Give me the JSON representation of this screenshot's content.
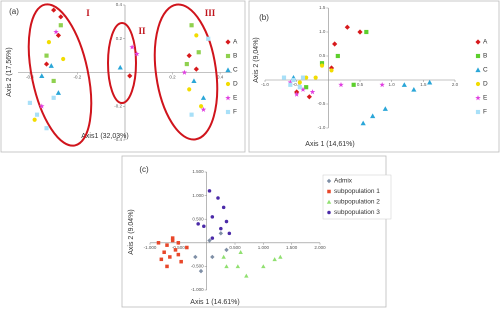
{
  "chart_data": [
    {
      "type": "scatter",
      "title": "(a)",
      "x_label": "Axis1 (32,03%)",
      "y_label": "Axis 2 (17,56%)",
      "annotations": [
        "I",
        "II",
        "III"
      ],
      "xlim": [
        -0.45,
        0.45
      ],
      "ylim": [
        -0.4,
        0.4
      ],
      "xticks": [
        -0.4,
        -0.2,
        0.2,
        0.4
      ],
      "yticks": [
        -0.4,
        -0.2,
        0.2,
        0.4
      ],
      "series": [
        {
          "name": "A",
          "color": "#d7191c",
          "marker": "diamond",
          "x": [
            -0.3,
            -0.27,
            -0.28,
            -0.33,
            0.27,
            0.3,
            0.02
          ],
          "y": [
            0.37,
            0.33,
            0.22,
            0.05,
            0.1,
            0.02,
            -0.02
          ]
        },
        {
          "name": "B",
          "color": "#8fd14f",
          "marker": "square",
          "x": [
            -0.27,
            -0.33,
            -0.3,
            0.28,
            0.31,
            0.26
          ],
          "y": [
            0.28,
            0.1,
            -0.05,
            0.28,
            0.12,
            0.05
          ]
        },
        {
          "name": "C",
          "color": "#2aa6d8",
          "marker": "triangle",
          "x": [
            -0.35,
            -0.28,
            -0.31,
            0.29,
            0.33,
            -0.02
          ],
          "y": [
            -0.02,
            -0.12,
            0.04,
            -0.05,
            -0.15,
            0.03
          ]
        },
        {
          "name": "D",
          "color": "#f2dc00",
          "marker": "circle",
          "x": [
            -0.32,
            -0.26,
            -0.38,
            0.3,
            0.27,
            0.32
          ],
          "y": [
            0.18,
            0.08,
            -0.28,
            0.22,
            -0.1,
            -0.2
          ]
        },
        {
          "name": "E",
          "color": "#e040e0",
          "marker": "star",
          "x": [
            -0.29,
            0.03,
            0.05,
            0.25,
            0.33,
            -0.35
          ],
          "y": [
            0.24,
            0.15,
            0.11,
            0.0,
            -0.22,
            -0.2
          ]
        },
        {
          "name": "F",
          "color": "#a8e0f8",
          "marker": "square",
          "x": [
            -0.37,
            -0.4,
            -0.33,
            0.28,
            -0.3,
            0.35
          ],
          "y": [
            -0.25,
            -0.18,
            -0.33,
            -0.25,
            -0.15,
            0.2
          ]
        }
      ]
    },
    {
      "type": "scatter",
      "title": "(b)",
      "x_label": "Axis 1 (14,61%)",
      "y_label": "Axis 2 (9,04%)",
      "xlim": [
        -1,
        2
      ],
      "ylim": [
        -1,
        1.5
      ],
      "xticks": [
        {
          "value": -1,
          "label": "-1.0"
        },
        -0.5,
        0.5,
        {
          "value": 1,
          "label": "1.0"
        },
        1.5,
        {
          "value": 2,
          "label": "2.0"
        }
      ],
      "yticks": [
        {
          "value": -1,
          "label": "-1.0"
        },
        -0.5,
        0.5,
        {
          "value": 1,
          "label": "1.0"
        },
        1.5
      ],
      "series": [
        {
          "name": "A",
          "color": "#d7191c",
          "marker": "diamond",
          "x": [
            0.3,
            0.5,
            0.1,
            -0.5,
            -0.3,
            0.05
          ],
          "y": [
            1.1,
            1.0,
            0.75,
            -0.25,
            -0.35,
            0.25
          ]
        },
        {
          "name": "B",
          "color": "#5ccf2c",
          "marker": "square",
          "x": [
            0.6,
            0.15,
            -0.1,
            0.4,
            -0.35
          ],
          "y": [
            1.0,
            0.5,
            0.35,
            -0.1,
            -0.15
          ]
        },
        {
          "name": "C",
          "color": "#2aa6d8",
          "marker": "triangle",
          "x": [
            1.6,
            1.2,
            1.35,
            0.9,
            0.7,
            0.55,
            -0.55
          ],
          "y": [
            -0.05,
            -0.1,
            -0.2,
            -0.6,
            -0.75,
            -0.9,
            0.05
          ]
        },
        {
          "name": "D",
          "color": "#f2dc00",
          "marker": "circle",
          "x": [
            -0.35,
            -0.1,
            -0.45,
            0.05,
            -0.2
          ],
          "y": [
            0.05,
            0.3,
            -0.05,
            0.2,
            0.05
          ]
        },
        {
          "name": "E",
          "color": "#e040e0",
          "marker": "star",
          "x": [
            -0.6,
            -0.5,
            -0.25,
            0.2,
            -0.4,
            0.85
          ],
          "y": [
            -0.05,
            -0.3,
            -0.25,
            -0.1,
            -0.2,
            -0.1
          ]
        },
        {
          "name": "F",
          "color": "#a8e0f8",
          "marker": "square",
          "x": [
            -0.7,
            -0.55,
            -0.4,
            -0.6,
            -0.45
          ],
          "y": [
            0.05,
            0.0,
            0.05,
            -0.1,
            -0.15
          ]
        }
      ]
    },
    {
      "type": "scatter",
      "title": "(c)",
      "x_label": "Axis 1 (14.61%)",
      "y_label": "Axis 2 (9.04%)",
      "xlim": [
        -1,
        2
      ],
      "ylim": [
        -1,
        1.5
      ],
      "xticks": [
        {
          "value": -1,
          "label": "-1.000"
        },
        {
          "value": -0.5,
          "label": "-0.500"
        },
        {
          "value": 0.5,
          "label": "0.500"
        },
        {
          "value": 1,
          "label": "1.000"
        },
        {
          "value": 1.5,
          "label": "1.500"
        },
        {
          "value": 2,
          "label": "2.000"
        }
      ],
      "yticks": [
        {
          "value": -1,
          "label": "-1.000"
        },
        {
          "value": -0.5,
          "label": "-0.500"
        },
        {
          "value": 0.5,
          "label": "0.500"
        },
        {
          "value": 1,
          "label": "1.000"
        },
        {
          "value": 1.5,
          "label": "1.500"
        }
      ],
      "series": [
        {
          "name": "Admix",
          "color": "#7f8fa6",
          "marker": "diamond",
          "x": [
            -0.1,
            0.1,
            0.25,
            0.35,
            -0.2,
            0.05
          ],
          "y": [
            -0.6,
            -0.3,
            0.2,
            -0.15,
            -0.3,
            0.05
          ]
        },
        {
          "name": "subpopulation 1",
          "color": "#e8472a",
          "marker": "square",
          "x": [
            -0.85,
            -0.7,
            -0.6,
            -0.5,
            -0.75,
            -0.65,
            -0.55,
            -0.8,
            -0.45,
            -0.7,
            -0.6,
            -0.5,
            -0.35
          ],
          "y": [
            0.0,
            -0.05,
            0.1,
            0.0,
            -0.2,
            -0.3,
            -0.15,
            -0.35,
            -0.4,
            -0.5,
            0.05,
            -0.25,
            -0.1
          ]
        },
        {
          "name": "subpopulation 2",
          "color": "#90e070",
          "marker": "triangle",
          "x": [
            0.3,
            0.55,
            0.7,
            1.0,
            1.2,
            1.3,
            0.35,
            0.6
          ],
          "y": [
            -0.3,
            -0.5,
            -0.7,
            -0.5,
            -0.35,
            -0.3,
            -0.5,
            -0.2
          ]
        },
        {
          "name": "subpopulation 3",
          "color": "#4b2aa8",
          "marker": "circle",
          "x": [
            0.05,
            0.2,
            0.3,
            0.1,
            0.35,
            -0.05,
            0.25,
            0.4,
            -0.15,
            0.1
          ],
          "y": [
            1.1,
            0.95,
            0.75,
            0.55,
            0.45,
            0.35,
            0.3,
            0.2,
            0.4,
            0.1
          ]
        }
      ]
    }
  ]
}
